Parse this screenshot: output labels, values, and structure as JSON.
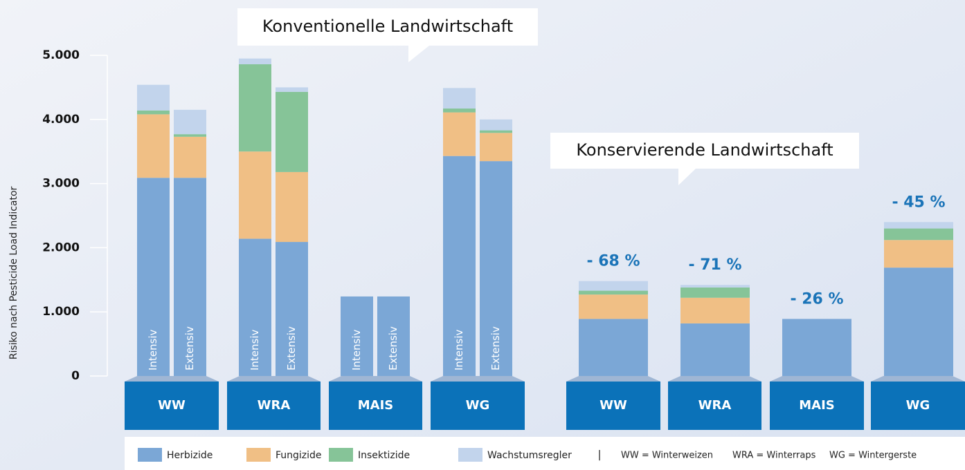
{
  "chart_data": {
    "type": "stacked_bar",
    "y_label": "Risiko nach Pesticide Load Indicator",
    "categories": [
      "Intensiv",
      "Extensiv",
      "Intensiv",
      "Extensiv",
      "Intensiv",
      "Extensiv",
      "Intensiv",
      "Extensiv",
      null,
      null,
      null,
      null
    ],
    "groups": [
      {
        "title": "Konventionelle Landwirtschaft",
        "crops": [
          "WW",
          "WRA",
          "MAIS",
          "WG"
        ]
      },
      {
        "title": "Konservierende Landwirtschaft",
        "crops": [
          "WW",
          "WRA",
          "MAIS",
          "WG"
        ],
        "reductions": [
          "- 68 %",
          "- 71 %",
          "- 26 %",
          "- 45 %"
        ]
      }
    ],
    "series": [
      {
        "name": "Herbizide",
        "color": "#7ba7d6",
        "values": [
          3090,
          3090,
          2140,
          2090,
          1240,
          1240,
          3430,
          3350,
          890,
          820,
          890,
          1690
        ]
      },
      {
        "name": "Fungizide",
        "color": "#f0bf85",
        "values": [
          990,
          640,
          1360,
          1090,
          0,
          0,
          680,
          440,
          380,
          400,
          0,
          430
        ]
      },
      {
        "name": "Insektizide",
        "color": "#86c498",
        "values": [
          60,
          40,
          1360,
          1250,
          0,
          0,
          60,
          40,
          60,
          160,
          0,
          180
        ]
      },
      {
        "name": "Wachstumsregler",
        "color": "#c2d4ec",
        "values": [
          400,
          380,
          90,
          70,
          0,
          0,
          320,
          170,
          150,
          40,
          0,
          100
        ]
      }
    ],
    "legend_separator": "|",
    "abbreviations": [
      "WW = Winterweizen",
      "WRA = Winterraps",
      "WG = Wintergerste"
    ],
    "ylim": [
      0,
      5000
    ],
    "yticks": [
      0,
      {
        "value": 1000,
        "label": "1.000"
      },
      {
        "value": 2000,
        "label": "2.000"
      },
      {
        "value": 3000,
        "label": "3.000"
      },
      {
        "value": 4000,
        "label": "4.000"
      },
      {
        "value": 5000,
        "label": "5.000"
      }
    ],
    "crop_box_color": "#0b72b9",
    "reduction_color": "#1b74b8"
  }
}
